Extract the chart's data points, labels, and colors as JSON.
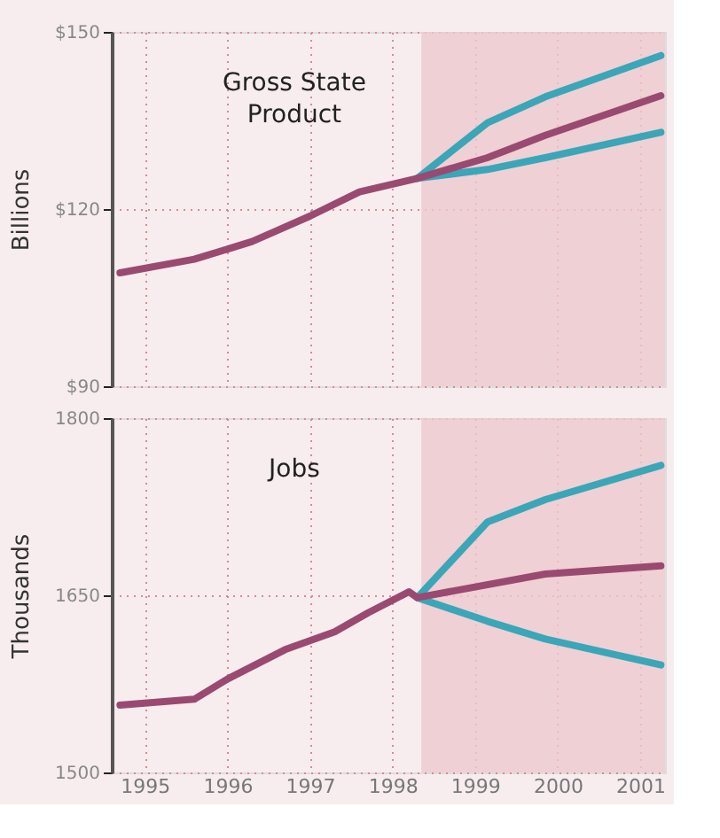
{
  "chart_data": [
    {
      "type": "line",
      "title": "Gross State Product",
      "ylabel": "Billions",
      "xlim": [
        1994.6,
        2001.3
      ],
      "xticks": [
        {
          "value": 1995,
          "label": null
        },
        {
          "value": 1996,
          "label": null
        },
        {
          "value": 1997,
          "label": null
        },
        {
          "value": 1998,
          "label": null
        },
        {
          "value": 1999,
          "label": null
        },
        {
          "value": 2000,
          "label": null
        },
        {
          "value": 2001,
          "label": null
        }
      ],
      "ylim": [
        90,
        150
      ],
      "yticks": [
        {
          "value": 90,
          "label": "$90"
        },
        {
          "value": 120,
          "label": "$120"
        },
        {
          "value": 150,
          "label": "$150"
        }
      ],
      "tick_labels": "y",
      "grid": true,
      "bands": [
        {
          "axis": "x",
          "from": 1998.35,
          "to": 2001.3,
          "color": "#ecc9cd"
        }
      ],
      "series": [
        {
          "color": "#3aa6b8",
          "x": [
            1998.3,
            1999.15,
            1999.85,
            2001.25
          ],
          "values": [
            125.2,
            134.6,
            139.0,
            146.0
          ]
        },
        {
          "color": "#3aa6b8",
          "x": [
            1998.3,
            1999.15,
            1999.85,
            2001.25
          ],
          "values": [
            125.2,
            126.7,
            128.7,
            133.0
          ]
        },
        {
          "color": "#9a4a70",
          "x": [
            1994.7,
            1995.6,
            1996.3,
            1997.0,
            1997.6,
            1998.3,
            1999.15,
            1999.85,
            2001.25
          ],
          "values": [
            109.2,
            111.5,
            114.5,
            118.8,
            122.9,
            125.2,
            128.7,
            132.5,
            139.2
          ]
        }
      ]
    },
    {
      "type": "line",
      "title": "Jobs",
      "ylabel": "Thousands",
      "xlim": [
        1994.6,
        2001.3
      ],
      "xticks": [
        1995,
        1996,
        1997,
        1998,
        1999,
        2000,
        2001
      ],
      "ylim": [
        1500,
        1800
      ],
      "yticks": [
        1500,
        1650,
        1800
      ],
      "grid": true,
      "bands": [
        {
          "axis": "x",
          "from": 1998.35,
          "to": 2001.3,
          "color": "#ecc9cd"
        }
      ],
      "series": [
        {
          "color": "#3aa6b8",
          "x": [
            1998.3,
            1999.15,
            1999.85,
            2001.25
          ],
          "values": [
            1648,
            1712,
            1731,
            1760
          ]
        },
        {
          "color": "#3aa6b8",
          "x": [
            1998.3,
            1999.15,
            1999.85,
            2001.25
          ],
          "values": [
            1648,
            1628,
            1613,
            1591
          ]
        },
        {
          "color": "#9a4a70",
          "x": [
            1994.7,
            1995.6,
            1996.0,
            1996.7,
            1997.3,
            1997.7,
            1998.2,
            1998.3,
            1999.85,
            2001.25
          ],
          "values": [
            1557,
            1562,
            1579,
            1604,
            1619,
            1635,
            1653,
            1648,
            1668,
            1675
          ]
        }
      ]
    }
  ]
}
